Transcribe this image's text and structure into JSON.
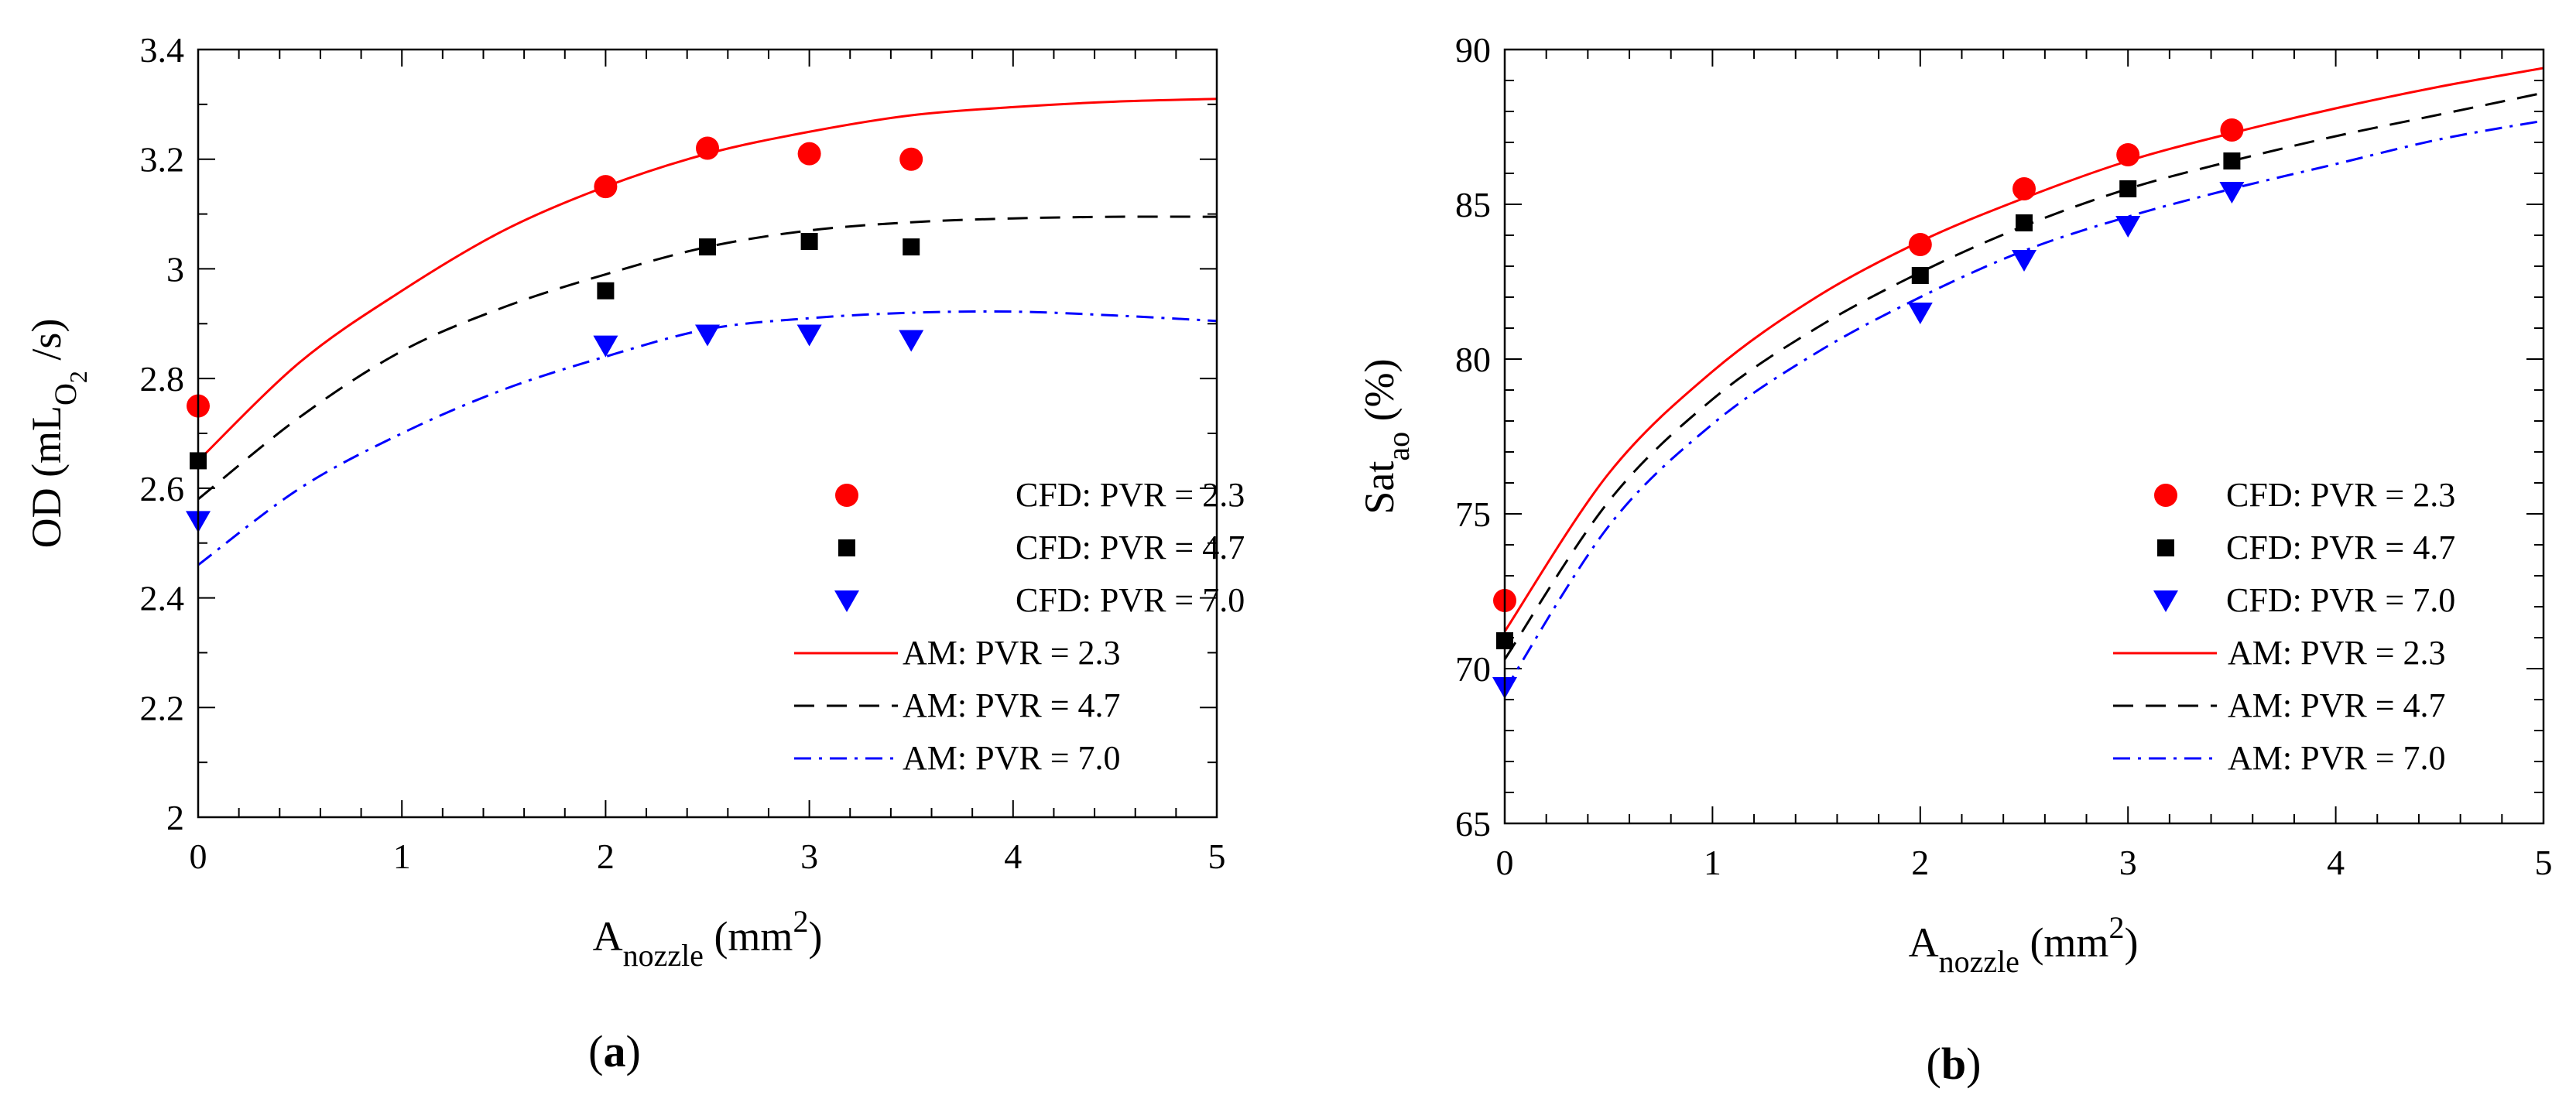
{
  "chart_data": [
    {
      "type": "scatter",
      "panel_label": {
        "open": "(",
        "letter": "a",
        "close": ")"
      },
      "xlabel": {
        "main": "A",
        "sub": "nozzle",
        "mid": " (mm",
        "sup": "2",
        "end": ")"
      },
      "ylabel": {
        "main": "OD (mL",
        "sub": "O",
        "subsub": "2",
        "end": " /s)"
      },
      "xlim": [
        0,
        5
      ],
      "ylim": [
        2,
        3.4
      ],
      "xticks": [
        0,
        1,
        2,
        3,
        4,
        5
      ],
      "yticks": [
        2,
        2.2,
        2.4,
        2.6,
        2.8,
        3,
        3.2,
        3.4
      ],
      "xtick_labels": [
        "0",
        "1",
        "2",
        "3",
        "4",
        "5"
      ],
      "ytick_labels": [
        "2",
        "2.2",
        "2.4",
        "2.6",
        "2.8",
        "3",
        "3.2",
        "3.4"
      ],
      "legend_position": "bottom-right",
      "scatter_series": [
        {
          "name": "CFD: PVR = 2.3",
          "marker": "circle",
          "color": "#ff0000",
          "x": [
            0,
            2,
            2.5,
            3,
            3.5
          ],
          "y": [
            2.75,
            3.15,
            3.22,
            3.21,
            3.2
          ]
        },
        {
          "name": "CFD: PVR = 4.7",
          "marker": "square",
          "color": "#000000",
          "x": [
            0,
            2,
            2.5,
            3,
            3.5
          ],
          "y": [
            2.65,
            2.96,
            3.04,
            3.05,
            3.04
          ]
        },
        {
          "name": "CFD: PVR = 7.0",
          "marker": "triangle-down",
          "color": "#0000ff",
          "x": [
            0,
            2,
            2.5,
            3,
            3.5
          ],
          "y": [
            2.54,
            2.86,
            2.88,
            2.88,
            2.87
          ]
        }
      ],
      "line_series": [
        {
          "name": "AM: PVR = 2.3",
          "style": "solid",
          "color": "#ff0000",
          "x": [
            0,
            0.5,
            1,
            1.5,
            2,
            2.5,
            3,
            3.5,
            4,
            4.5,
            5
          ],
          "y": [
            2.65,
            2.83,
            2.96,
            3.07,
            3.15,
            3.21,
            3.25,
            3.28,
            3.295,
            3.305,
            3.31
          ]
        },
        {
          "name": "AM: PVR = 4.7",
          "style": "dashed",
          "color": "#000000",
          "x": [
            0,
            0.5,
            1,
            1.5,
            2,
            2.5,
            3,
            3.5,
            4,
            4.5,
            5
          ],
          "y": [
            2.58,
            2.73,
            2.85,
            2.93,
            2.99,
            3.04,
            3.07,
            3.085,
            3.092,
            3.095,
            3.095
          ]
        },
        {
          "name": "AM: PVR = 7.0",
          "style": "dashdot",
          "color": "#0000ff",
          "x": [
            0,
            0.5,
            1,
            1.5,
            2,
            2.5,
            3,
            3.5,
            4,
            4.5,
            5
          ],
          "y": [
            2.46,
            2.6,
            2.7,
            2.78,
            2.84,
            2.89,
            2.91,
            2.92,
            2.922,
            2.915,
            2.905
          ]
        }
      ]
    },
    {
      "type": "scatter",
      "panel_label": {
        "open": "(",
        "letter": "b",
        "close": ")"
      },
      "xlabel": {
        "main": "A",
        "sub": "nozzle",
        "mid": " (mm",
        "sup": "2",
        "end": ")"
      },
      "ylabel": {
        "main": "Sat",
        "sub": "ao",
        "end": " (%)"
      },
      "xlim": [
        0,
        5
      ],
      "ylim": [
        65,
        90
      ],
      "xticks": [
        0,
        1,
        2,
        3,
        4,
        5
      ],
      "yticks": [
        65,
        70,
        75,
        80,
        85,
        90
      ],
      "xtick_labels": [
        "0",
        "1",
        "2",
        "3",
        "4",
        "5"
      ],
      "ytick_labels": [
        "65",
        "70",
        "75",
        "80",
        "85",
        "90"
      ],
      "legend_position": "bottom-right",
      "scatter_series": [
        {
          "name": "CFD: PVR = 2.3",
          "marker": "circle",
          "color": "#ff0000",
          "x": [
            0,
            2,
            2.5,
            3,
            3.5
          ],
          "y": [
            72.2,
            83.7,
            85.5,
            86.6,
            87.4
          ]
        },
        {
          "name": "CFD: PVR = 4.7",
          "marker": "square",
          "color": "#000000",
          "x": [
            0,
            2,
            2.5,
            3,
            3.5
          ],
          "y": [
            70.9,
            82.7,
            84.4,
            85.5,
            86.4
          ]
        },
        {
          "name": "CFD: PVR = 7.0",
          "marker": "triangle-down",
          "color": "#0000ff",
          "x": [
            0,
            2,
            2.5,
            3,
            3.5
          ],
          "y": [
            69.4,
            81.5,
            83.2,
            84.3,
            85.4
          ]
        }
      ],
      "line_series": [
        {
          "name": "AM: PVR = 2.3",
          "style": "solid",
          "color": "#ff0000",
          "x": [
            0,
            0.5,
            1,
            1.5,
            2,
            2.5,
            3,
            3.5,
            4,
            4.5,
            5
          ],
          "y": [
            71.2,
            76.3,
            79.6,
            82.0,
            83.8,
            85.2,
            86.4,
            87.3,
            88.1,
            88.8,
            89.4
          ]
        },
        {
          "name": "AM: PVR = 4.7",
          "style": "dashed",
          "color": "#000000",
          "x": [
            0,
            0.5,
            1,
            1.5,
            2,
            2.5,
            3,
            3.5,
            4,
            4.5,
            5
          ],
          "y": [
            70.3,
            75.4,
            78.7,
            81.0,
            82.8,
            84.3,
            85.5,
            86.4,
            87.2,
            87.9,
            88.6
          ]
        },
        {
          "name": "AM: PVR = 7.0",
          "style": "dashdot",
          "color": "#0000ff",
          "x": [
            0,
            0.5,
            1,
            1.5,
            2,
            2.5,
            3,
            3.5,
            4,
            4.5,
            5
          ],
          "y": [
            69.3,
            74.6,
            77.9,
            80.2,
            82.0,
            83.5,
            84.6,
            85.5,
            86.3,
            87.1,
            87.7
          ]
        }
      ]
    }
  ]
}
